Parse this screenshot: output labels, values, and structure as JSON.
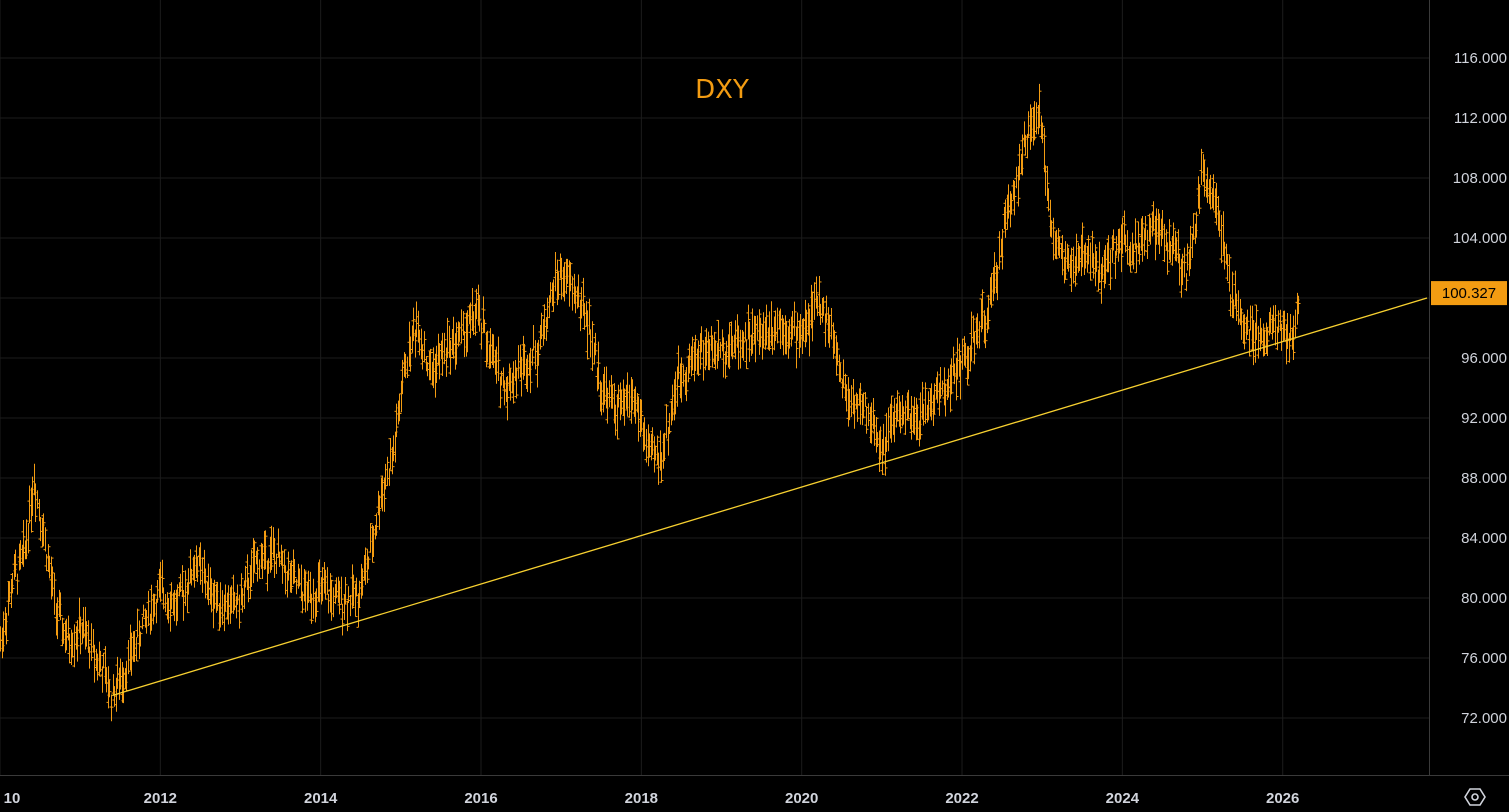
{
  "chart_data": {
    "type": "bar",
    "title": "DXY",
    "ylim": [
      68.5,
      120.0
    ],
    "y_ticks": [
      "116.000",
      "112.000",
      "108.000",
      "104.000",
      "100.000",
      "96.000",
      "92.000",
      "88.000",
      "84.000",
      "80.000",
      "76.000",
      "72.000"
    ],
    "y_tick_values": [
      116,
      112,
      108,
      104,
      100,
      96,
      92,
      88,
      84,
      80,
      76,
      72
    ],
    "x_ticks": [
      "10",
      "2012",
      "2014",
      "2016",
      "2018",
      "2020",
      "2022",
      "2024",
      "2026"
    ],
    "x_tick_values": [
      2010,
      2012,
      2014,
      2016,
      2018,
      2020,
      2022,
      2024,
      2026
    ],
    "xlim": [
      2010.0,
      2027.8
    ],
    "last_price": "100.327",
    "last_value": 100.327,
    "price_color": "#f39c12",
    "trendline": {
      "color": "#f7d030",
      "from": [
        2011.4,
        73.5
      ],
      "to": [
        2027.8,
        100.0
      ]
    },
    "grid": true,
    "series": [
      {
        "values_note_free": true,
        "x": [
          2010.0,
          2010.15,
          2010.3,
          2010.42,
          2010.55,
          2010.7,
          2010.85,
          2011.0,
          2011.15,
          2011.3,
          2011.38,
          2011.5,
          2011.65,
          2011.8,
          2012.0,
          2012.2,
          2012.45,
          2012.6,
          2012.8,
          2013.0,
          2013.2,
          2013.4,
          2013.6,
          2013.8,
          2014.0,
          2014.2,
          2014.45,
          2014.6,
          2014.75,
          2014.9,
          2015.05,
          2015.2,
          2015.35,
          2015.55,
          2015.75,
          2015.95,
          2016.1,
          2016.3,
          2016.5,
          2016.7,
          2016.95,
          2017.1,
          2017.3,
          2017.5,
          2017.7,
          2017.9,
          2018.1,
          2018.25,
          2018.45,
          2018.7,
          2018.95,
          2019.2,
          2019.45,
          2019.7,
          2019.95,
          2020.1,
          2020.2,
          2020.35,
          2020.55,
          2020.8,
          2021.0,
          2021.2,
          2021.4,
          2021.6,
          2021.85,
          2022.1,
          2022.35,
          2022.55,
          2022.75,
          2022.95,
          2023.15,
          2023.35,
          2023.55,
          2023.75,
          2023.95,
          2024.15,
          2024.4,
          2024.6,
          2024.8,
          2025.0,
          2025.15,
          2025.35,
          2025.55,
          2025.75,
          2025.95,
          2026.1,
          2026.2
        ],
        "y": [
          77.0,
          81.0,
          83.0,
          88.0,
          84.0,
          79.0,
          77.0,
          78.0,
          76.5,
          75.0,
          73.5,
          74.5,
          76.5,
          78.5,
          80.5,
          79.5,
          82.5,
          80.5,
          79.5,
          79.8,
          82.5,
          83.0,
          81.5,
          80.2,
          80.5,
          79.8,
          80.2,
          82.5,
          87.0,
          89.5,
          95.5,
          98.5,
          95.0,
          96.5,
          97.5,
          99.0,
          96.5,
          94.0,
          95.5,
          96.5,
          101.5,
          101.0,
          99.0,
          94.0,
          92.5,
          93.5,
          89.5,
          89.5,
          94.5,
          96.5,
          96.5,
          97.2,
          97.5,
          98.5,
          97.5,
          98.5,
          100.0,
          98.0,
          93.5,
          92.5,
          90.0,
          92.5,
          91.5,
          93.0,
          94.5,
          96.5,
          99.5,
          105.5,
          109.5,
          112.5,
          103.5,
          102.0,
          103.0,
          101.5,
          104.0,
          103.5,
          104.5,
          103.5,
          101.5,
          108.5,
          107.0,
          100.0,
          98.0,
          97.5,
          98.5,
          97.0,
          99.5
        ]
      }
    ]
  }
}
